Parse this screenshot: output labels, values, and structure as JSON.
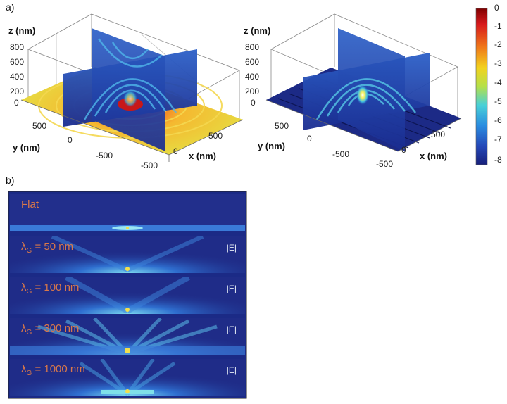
{
  "figure": {
    "panel_a_label": "a)",
    "panel_b_label": "b)",
    "left_plot": {
      "z_axis_label": "z (nm)",
      "z_ticks": [
        "800",
        "600",
        "400",
        "200",
        "0"
      ],
      "y_axis_label": "y (nm)",
      "y_ticks": [
        "500",
        "0",
        "-500"
      ],
      "x_axis_label": "x (nm)",
      "x_ticks": [
        "500",
        "0",
        "-500"
      ]
    },
    "right_plot": {
      "z_axis_label": "z (nm)",
      "z_ticks": [
        "800",
        "600",
        "400",
        "200",
        "0"
      ],
      "y_axis_label": "y (nm)",
      "y_ticks": [
        "500",
        "0",
        "-500"
      ],
      "x_axis_label": "x (nm)",
      "x_ticks": [
        "500",
        "0",
        "-500"
      ]
    },
    "colorbar": {
      "ticks": [
        "0",
        "-1",
        "-2",
        "-3",
        "-4",
        "-5",
        "-6",
        "-7",
        "-8"
      ],
      "colors": [
        "#7f0000",
        "#d7191c",
        "#f07a1a",
        "#f2d21e",
        "#b4e04a",
        "#48d0d8",
        "#2a8ce0",
        "#2448b8",
        "#18207a"
      ]
    },
    "strips": [
      {
        "label": "Flat",
        "sub": "",
        "suffix": "",
        "field_label": ""
      },
      {
        "label": "λ",
        "sub": "G",
        "suffix": " = 50 nm",
        "field_label": "|E|"
      },
      {
        "label": "λ",
        "sub": "G",
        "suffix": " = 100 nm",
        "field_label": "|E|"
      },
      {
        "label": "λ",
        "sub": "G",
        "suffix": " = 300 nm",
        "field_label": "|E|"
      },
      {
        "label": "λ",
        "sub": "G",
        "suffix": " = 1000 nm",
        "field_label": "|E|"
      }
    ]
  }
}
